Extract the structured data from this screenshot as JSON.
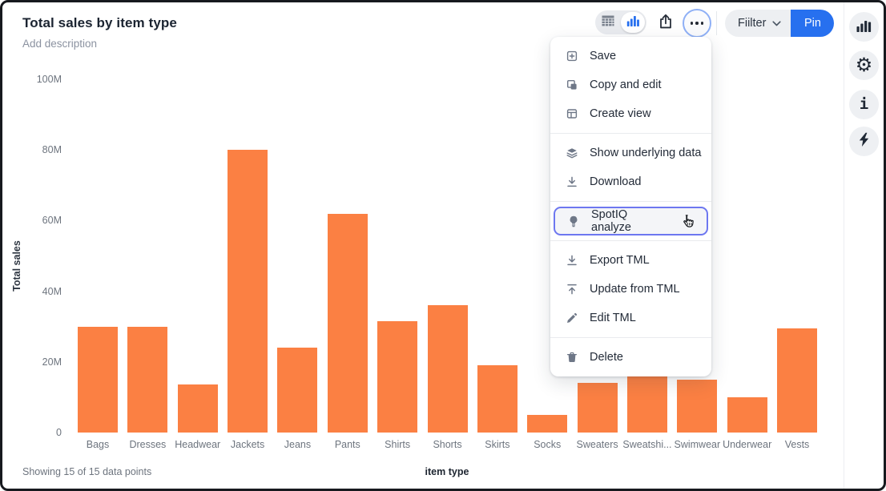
{
  "header": {
    "title": "Total sales by item type",
    "subtitle": "Add description"
  },
  "toolbar": {
    "view_toggle": {
      "table_active": false,
      "chart_active": true
    },
    "filter_label": "Fiilter",
    "pin_label": "Pin",
    "icons": [
      "table-view-icon",
      "chart-view-icon",
      "share-icon",
      "more-options-icon"
    ]
  },
  "menu": {
    "groups": [
      {
        "items": [
          {
            "label": "Save",
            "icon": "save-icon"
          },
          {
            "label": "Copy and edit",
            "icon": "copy-icon"
          },
          {
            "label": "Create view",
            "icon": "create-view-icon"
          }
        ]
      },
      {
        "items": [
          {
            "label": "Show underlying data",
            "icon": "layers-icon"
          },
          {
            "label": "Download",
            "icon": "download-icon"
          }
        ]
      },
      {
        "items": [
          {
            "label": "SpotIQ analyze",
            "icon": "lightbulb-icon",
            "highlighted": true,
            "cursor_over": true
          }
        ]
      },
      {
        "items": [
          {
            "label": "Export TML",
            "icon": "export-icon"
          },
          {
            "label": "Update from TML",
            "icon": "update-icon"
          },
          {
            "label": "Edit TML",
            "icon": "edit-icon"
          }
        ]
      },
      {
        "items": [
          {
            "label": "Delete",
            "icon": "delete-icon"
          }
        ]
      }
    ]
  },
  "right_sidebar": {
    "icons": [
      "chart-icon",
      "gear-icon",
      "info-icon",
      "bolt-icon"
    ]
  },
  "chart_data": {
    "type": "bar",
    "title": "Total sales by item type",
    "categories": [
      "Bags",
      "Dresses",
      "Headwear",
      "Jackets",
      "Jeans",
      "Pants",
      "Shirts",
      "Shorts",
      "Skirts",
      "Socks",
      "Sweaters",
      "Sweatshi...",
      "Swimwear",
      "Underwear",
      "Vests"
    ],
    "values": [
      30,
      30,
      13.5,
      80,
      24,
      62,
      31.5,
      36,
      19,
      5,
      14,
      16,
      15,
      10,
      29.5
    ],
    "unit": "M",
    "ylabel": "Total sales",
    "xlabel": "item type",
    "ylim": [
      0,
      100
    ],
    "yticks": [
      {
        "value": 0,
        "label": "0"
      },
      {
        "value": 20,
        "label": "20M"
      },
      {
        "value": 40,
        "label": "40M"
      },
      {
        "value": 60,
        "label": "60M"
      },
      {
        "value": 80,
        "label": "80M"
      },
      {
        "value": 100,
        "label": "100M"
      }
    ],
    "grid": false,
    "legend": false,
    "bar_color": "#fb8043",
    "occluded_by_menu": [
      "Sweaters",
      "Sweatshi..."
    ]
  },
  "footer": {
    "status": "Showing 15 of 15 data points"
  },
  "colors": {
    "accent_blue": "#2770ef",
    "bar_orange": "#fb8043",
    "spotiq_highlight_border": "#6d77f0",
    "title_text": "#1b2431",
    "muted_text": "#8b92a0",
    "axis_text": "#6d747e",
    "menu_text": "#232b38",
    "icon_gray": "#6e7787"
  }
}
